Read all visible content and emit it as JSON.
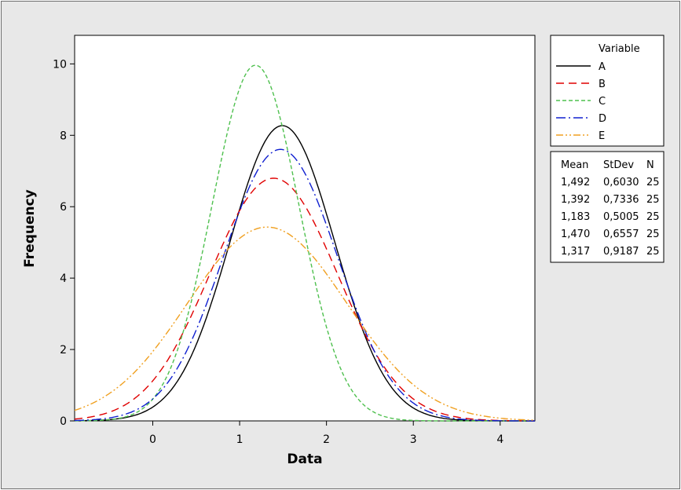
{
  "chart_data": {
    "type": "line",
    "xlabel": "Data",
    "ylabel": "Frequency",
    "xlim": [
      -0.9,
      4.4
    ],
    "ylim": [
      0,
      10.8
    ],
    "x_ticks": [
      0,
      1,
      2,
      3,
      4
    ],
    "y_ticks": [
      0,
      2,
      4,
      6,
      8,
      10
    ],
    "grid": false,
    "legend": {
      "title": "Variable",
      "placement": "right",
      "stats_headers": [
        "Mean",
        "StDev",
        "N"
      ]
    },
    "series": [
      {
        "name": "A",
        "mean": "1,492",
        "stdev": "0,6030",
        "n": "25",
        "mean_value": 1.492,
        "stdev_value": 0.603,
        "n_value": 25,
        "color": "#000000",
        "style": "solid"
      },
      {
        "name": "B",
        "mean": "1,392",
        "stdev": "0,7336",
        "n": "25",
        "mean_value": 1.392,
        "stdev_value": 0.7336,
        "n_value": 25,
        "color": "#e00000",
        "style": "dash"
      },
      {
        "name": "C",
        "mean": "1,183",
        "stdev": "0,5005",
        "n": "25",
        "mean_value": 1.183,
        "stdev_value": 0.5005,
        "n_value": 25,
        "color": "#4ec04e",
        "style": "short-dash"
      },
      {
        "name": "D",
        "mean": "1,470",
        "stdev": "0,6557",
        "n": "25",
        "mean_value": 1.47,
        "stdev_value": 0.6557,
        "n_value": 25,
        "color": "#1020d0",
        "style": "dash-dot"
      },
      {
        "name": "E",
        "mean": "1,317",
        "stdev": "0,9187",
        "n": "25",
        "mean_value": 1.317,
        "stdev_value": 0.9187,
        "n_value": 25,
        "color": "#f0a020",
        "style": "dash-dot-dot"
      }
    ]
  }
}
